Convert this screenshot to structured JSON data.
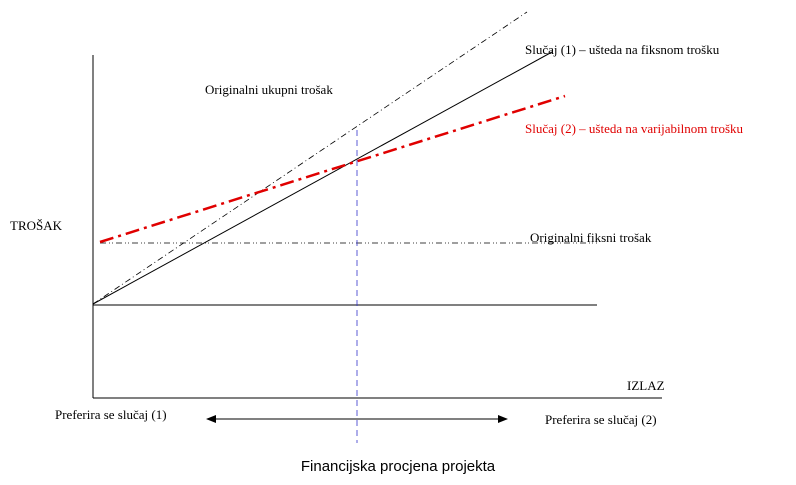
{
  "labels": {
    "case1": "Slučaj (1) – ušteda na fiksnom trošku",
    "total": "Originalni ukupni trošak",
    "case2": "Slučaj (2) – ušteda na varijabilnom trošku",
    "y_axis": "TROŠAK",
    "fixed": "Originalni fiksni trošak",
    "x_axis": "IZLAZ",
    "prefer1": "Preferira se slučaj (1)",
    "prefer2": "Preferira se slučaj (2)"
  },
  "title": "Financijska procjena projekta"
}
